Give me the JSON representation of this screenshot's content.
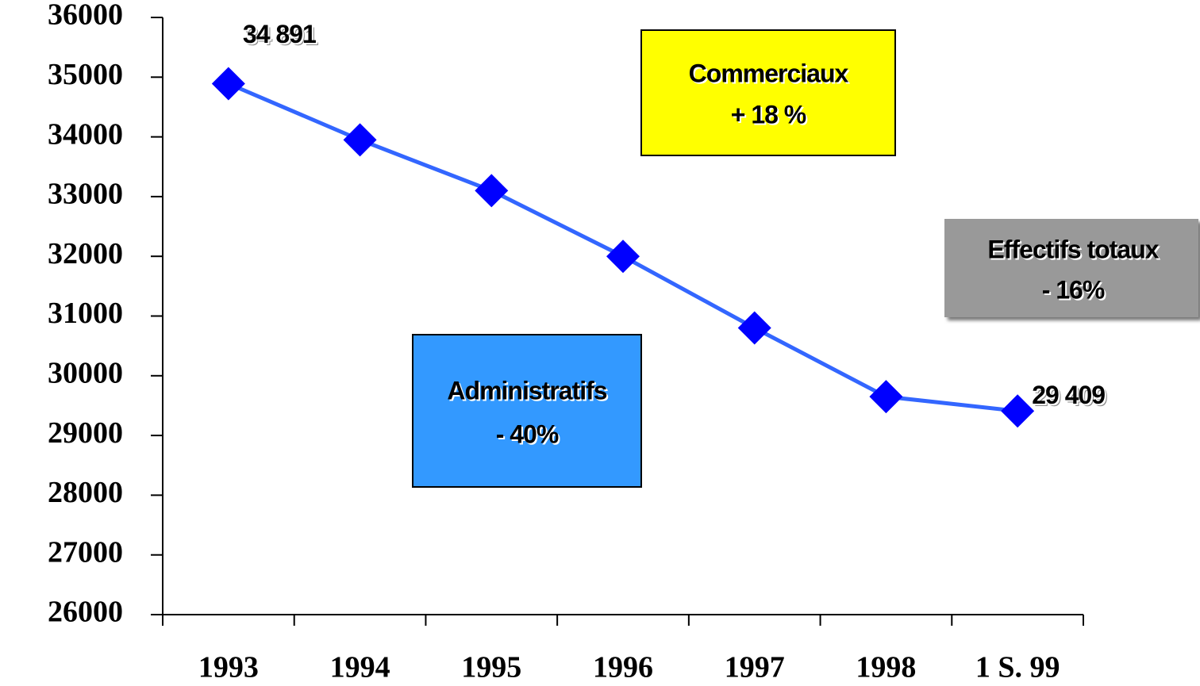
{
  "chart_data": {
    "type": "line",
    "categories": [
      "1993",
      "1994",
      "1995",
      "1996",
      "1997",
      "1998",
      "1 S. 99"
    ],
    "series": [
      {
        "line_color": "#3366ff",
        "color": "#0000ff",
        "values": [
          34891,
          33950,
          33100,
          32000,
          30800,
          29650,
          29409
        ],
        "value_labels": [
          "34 891",
          null,
          null,
          null,
          null,
          null,
          "29 409"
        ]
      }
    ],
    "ylim": [
      26000,
      36000
    ],
    "yticks": [
      26000,
      27000,
      28000,
      29000,
      30000,
      31000,
      32000,
      33000,
      34000,
      35000,
      36000
    ],
    "annotations": [
      {
        "lines": [
          "Commerciaux",
          "+ 18 %"
        ],
        "color": "#ffff00"
      },
      {
        "lines": [
          "Effectifs totaux",
          "- 16%"
        ],
        "color": "#999999"
      },
      {
        "lines": [
          "Administratifs",
          "- 40%"
        ],
        "color": "#3399ff"
      }
    ]
  }
}
